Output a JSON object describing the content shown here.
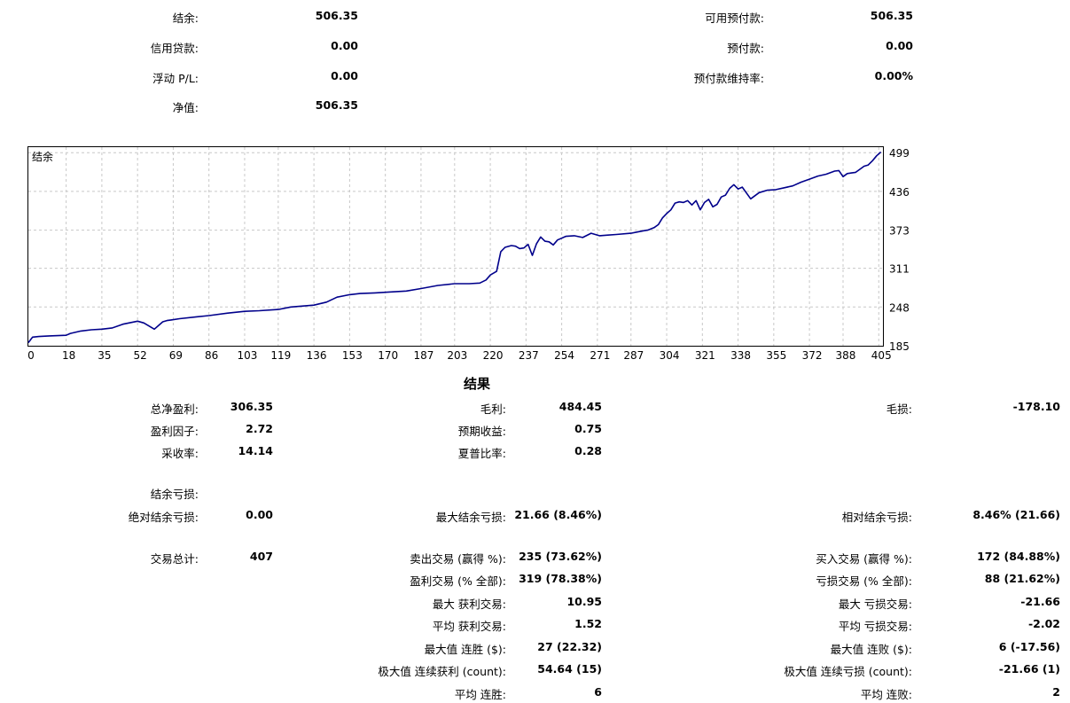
{
  "account": {
    "balance_label": "结余:",
    "balance_value": "506.35",
    "credit_label": "信用贷款:",
    "credit_value": "0.00",
    "floating_pl_label": "浮动 P/L:",
    "floating_pl_value": "0.00",
    "equity_label": "净值:",
    "equity_value": "506.35",
    "free_margin_label": "可用预付款:",
    "free_margin_value": "506.35",
    "margin_label": "预付款:",
    "margin_value": "0.00",
    "margin_level_label": "预付款维持率:",
    "margin_level_value": "0.00%"
  },
  "chart_data": {
    "type": "line",
    "title": "结余",
    "x_ticks": [
      "0",
      "18",
      "35",
      "52",
      "69",
      "86",
      "103",
      "119",
      "136",
      "153",
      "170",
      "187",
      "203",
      "220",
      "237",
      "254",
      "271",
      "287",
      "304",
      "321",
      "338",
      "355",
      "372",
      "388",
      "405"
    ],
    "y_ticks": [
      "499",
      "436",
      "373",
      "311",
      "248",
      "185"
    ],
    "xlim": [
      0,
      407
    ],
    "ylim": [
      185,
      508
    ],
    "grid": true,
    "color": "#00008b",
    "series": [
      {
        "x": [
          0,
          2,
          5,
          10,
          18,
          20,
          25,
          30,
          35,
          40,
          45,
          52,
          55,
          60,
          62,
          64,
          66,
          68,
          72,
          80,
          86,
          95,
          103,
          110,
          119,
          125,
          136,
          142,
          147,
          153,
          158,
          165,
          170,
          180,
          187,
          195,
          203,
          210,
          215,
          218,
          220,
          223,
          225,
          227,
          230,
          232,
          234,
          236,
          238,
          240,
          242,
          244,
          246,
          248,
          250,
          252,
          256,
          260,
          264,
          268,
          272,
          276,
          280,
          287,
          290,
          293,
          295,
          298,
          300,
          302,
          304,
          306,
          308,
          310,
          312,
          314,
          316,
          318,
          320,
          322,
          324,
          326,
          328,
          330,
          332,
          334,
          336,
          338,
          340,
          344,
          348,
          352,
          356,
          360,
          364,
          368,
          372,
          376,
          380,
          384,
          386,
          388,
          390,
          392,
          394,
          396,
          398,
          400,
          402,
          404,
          406
        ],
        "y": [
          190,
          199,
          200,
          201,
          202,
          205,
          209,
          211,
          212,
          214,
          220,
          225,
          222,
          212,
          218,
          224,
          226,
          227,
          229,
          232,
          234,
          238,
          241,
          242,
          244,
          248,
          251,
          256,
          264,
          268,
          270,
          271,
          272,
          274,
          278,
          283,
          286,
          286,
          287,
          292,
          300,
          306,
          338,
          345,
          348,
          347,
          343,
          344,
          350,
          332,
          351,
          362,
          355,
          354,
          349,
          357,
          363,
          364,
          361,
          368,
          364,
          365,
          366,
          368,
          370,
          372,
          373,
          377,
          382,
          393,
          400,
          406,
          417,
          419,
          418,
          421,
          414,
          421,
          406,
          418,
          423,
          411,
          415,
          427,
          430,
          441,
          447,
          440,
          443,
          424,
          434,
          438,
          439,
          442,
          445,
          451,
          456,
          461,
          464,
          469,
          470,
          460,
          465,
          466,
          467,
          472,
          477,
          479,
          486,
          494,
          500
        ]
      }
    ]
  },
  "results": {
    "title": "结果",
    "total_net_profit_label": "总净盈利:",
    "total_net_profit_value": "306.35",
    "gross_profit_label": "毛利:",
    "gross_profit_value": "484.45",
    "gross_loss_label": "毛损:",
    "gross_loss_value": "-178.10",
    "profit_factor_label": "盈利因子:",
    "profit_factor_value": "2.72",
    "expected_payoff_label": "预期收益:",
    "expected_payoff_value": "0.75",
    "recovery_factor_label": "采收率:",
    "recovery_factor_value": "14.14",
    "sharpe_ratio_label": "夏普比率:",
    "sharpe_ratio_value": "0.28",
    "balance_drawdown_label": "结余亏损:",
    "abs_balance_drawdown_label": "绝对结余亏损:",
    "abs_balance_drawdown_value": "0.00",
    "max_balance_drawdown_label": "最大结余亏损:",
    "max_balance_drawdown_value": "21.66 (8.46%)",
    "rel_balance_drawdown_label": "相对结余亏损:",
    "rel_balance_drawdown_value": "8.46% (21.66)",
    "total_trades_label": "交易总计:",
    "total_trades_value": "407",
    "short_trades_label": "卖出交易 (赢得 %):",
    "short_trades_value": "235 (73.62%)",
    "long_trades_label": "买入交易 (赢得 %):",
    "long_trades_value": "172 (84.88%)",
    "profit_trades_label": "盈利交易 (% 全部):",
    "profit_trades_value": "319 (78.38%)",
    "loss_trades_label": "亏损交易 (% 全部):",
    "loss_trades_value": "88 (21.62%)",
    "largest_profit_label": "最大 获利交易:",
    "largest_profit_value": "10.95",
    "largest_loss_label": "最大 亏损交易:",
    "largest_loss_value": "-21.66",
    "avg_profit_label": "平均 获利交易:",
    "avg_profit_value": "1.52",
    "avg_loss_label": "平均 亏损交易:",
    "avg_loss_value": "-2.02",
    "max_consec_wins_label": "最大值 连胜 ($):",
    "max_consec_wins_value": "27 (22.32)",
    "max_consec_losses_label": "最大值 连败 ($):",
    "max_consec_losses_value": "6 (-17.56)",
    "max_consec_profit_label": "极大值 连续获利 (count):",
    "max_consec_profit_value": "54.64 (15)",
    "max_consec_loss_label": "极大值 连续亏损 (count):",
    "max_consec_loss_value": "-21.66 (1)",
    "avg_consec_wins_label": "平均 连胜:",
    "avg_consec_wins_value": "6",
    "avg_consec_losses_label": "平均 连败:",
    "avg_consec_losses_value": "2"
  }
}
